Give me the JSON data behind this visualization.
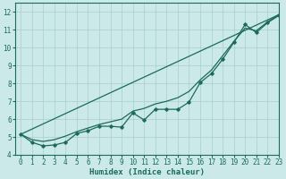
{
  "xlabel": "Humidex (Indice chaleur)",
  "ylabel": "",
  "xlim": [
    -0.5,
    23
  ],
  "ylim": [
    4,
    12.5
  ],
  "background_color": "#cce9e9",
  "grid_color": "#a8cece",
  "line_color": "#1a6b5a",
  "xticks": [
    0,
    1,
    2,
    3,
    4,
    5,
    6,
    7,
    8,
    9,
    10,
    11,
    12,
    13,
    14,
    15,
    16,
    17,
    18,
    19,
    20,
    21,
    22,
    23
  ],
  "yticks": [
    4,
    5,
    6,
    7,
    8,
    9,
    10,
    11,
    12
  ],
  "line1_x": [
    0,
    1,
    2,
    3,
    4,
    5,
    6,
    7,
    8,
    9,
    10,
    11,
    12,
    13,
    14,
    15,
    16,
    17,
    18,
    19,
    20,
    21,
    22,
    23
  ],
  "line1_y": [
    5.15,
    4.7,
    4.5,
    4.55,
    4.7,
    5.2,
    5.35,
    5.6,
    5.6,
    5.55,
    6.35,
    5.95,
    6.55,
    6.55,
    6.55,
    6.95,
    8.05,
    8.55,
    9.35,
    10.3,
    11.3,
    10.85,
    11.4,
    11.8
  ],
  "line2_x": [
    0,
    23
  ],
  "line2_y": [
    5.15,
    11.85
  ],
  "line3_x": [
    0,
    1,
    2,
    3,
    4,
    5,
    6,
    7,
    8,
    9,
    10,
    11,
    12,
    13,
    14,
    15,
    16,
    17,
    18,
    19,
    20,
    21,
    22,
    23
  ],
  "line3_y": [
    5.15,
    4.85,
    4.75,
    4.85,
    5.05,
    5.3,
    5.5,
    5.7,
    5.85,
    6.0,
    6.45,
    6.6,
    6.85,
    7.0,
    7.2,
    7.55,
    8.2,
    8.75,
    9.55,
    10.35,
    11.1,
    10.95,
    11.45,
    11.85
  ],
  "font_color": "#1a6b5a",
  "font_family": "monospace",
  "tick_fontsize": 5.5,
  "xlabel_fontsize": 6.5
}
